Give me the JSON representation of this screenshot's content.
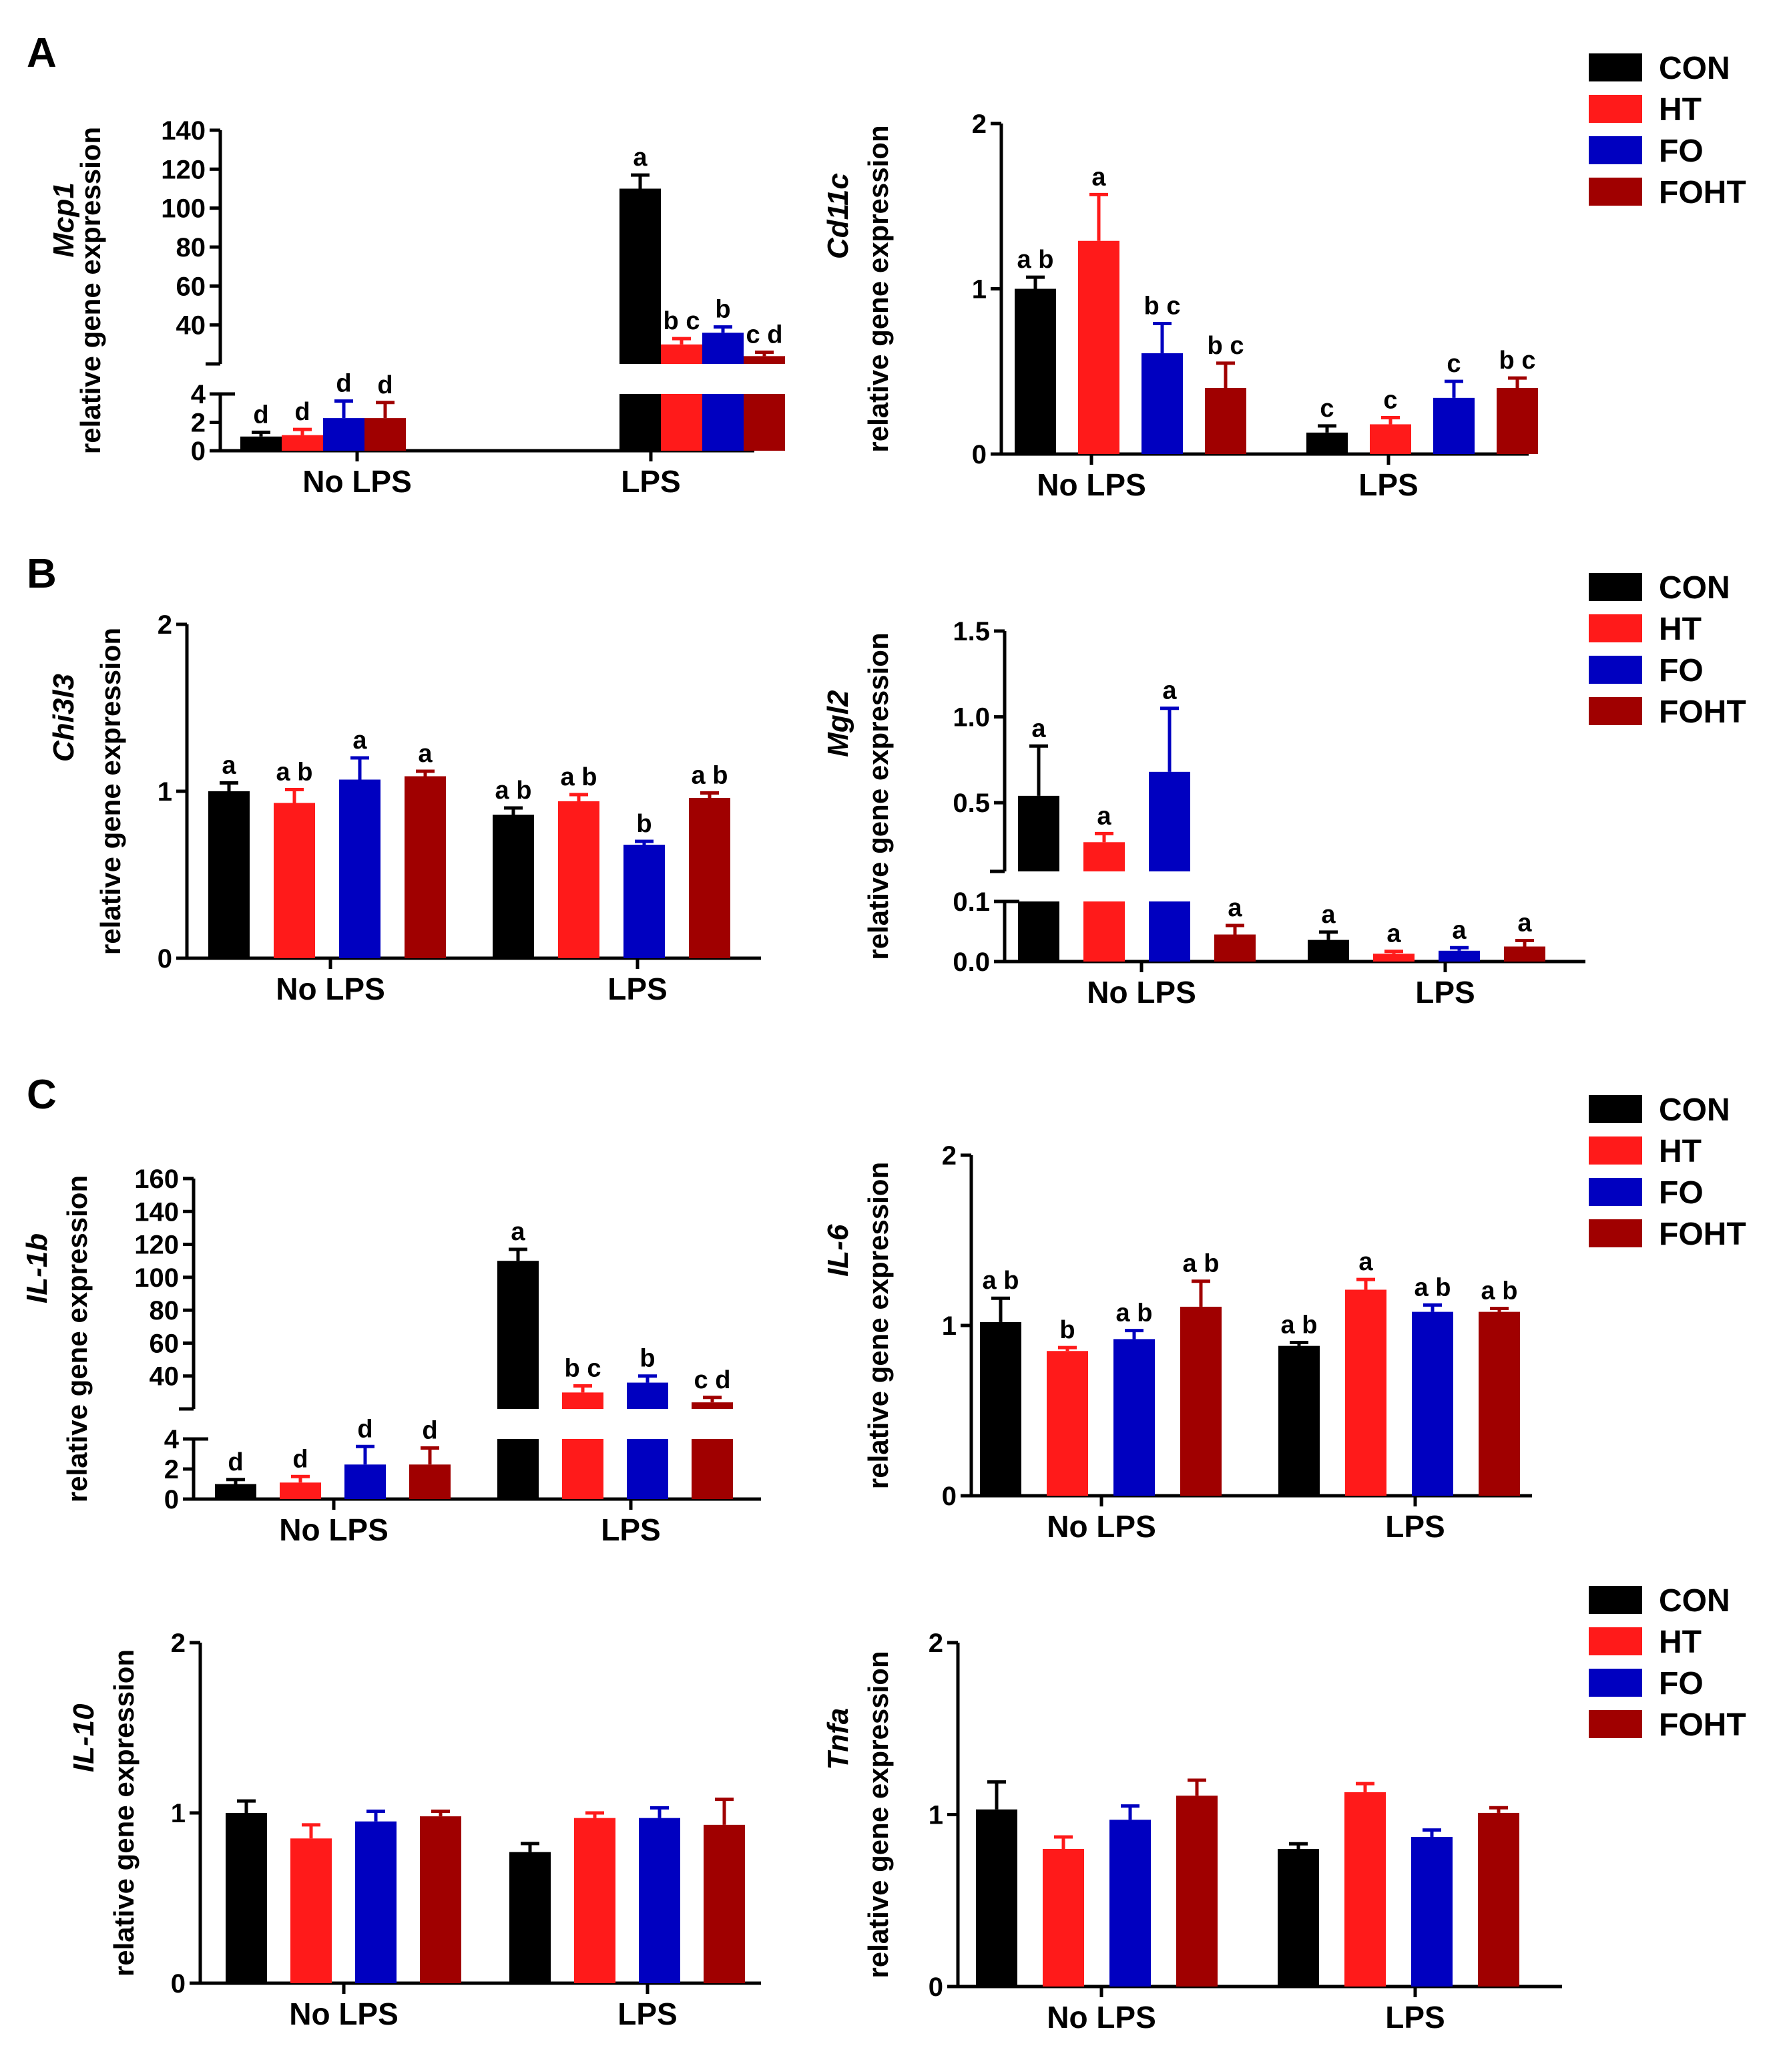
{
  "colors": {
    "CON": "#000000",
    "HT": "#ff1a1a",
    "FO": "#0000c0",
    "FOHT": "#a00000"
  },
  "panel_labels": [
    "A",
    "B",
    "C"
  ],
  "legend": {
    "entries": [
      "CON",
      "HT",
      "FO",
      "FOHT"
    ]
  },
  "chart_data": [
    {
      "id": "mcp1",
      "type": "bar",
      "gene": "Mcp1",
      "ylabel": "relative gene expression",
      "categories": [
        "No LPS",
        "LPS"
      ],
      "broken_axis": {
        "lower": [
          0,
          4
        ],
        "upper": [
          20,
          140
        ],
        "lower_ticks": [
          0,
          2,
          4
        ],
        "upper_ticks": [
          40,
          60,
          80,
          100,
          120,
          140
        ]
      },
      "series": [
        {
          "name": "CON",
          "values": [
            1.0,
            110
          ],
          "errors": [
            0.3,
            7
          ],
          "sig": [
            "d",
            "a"
          ]
        },
        {
          "name": "HT",
          "values": [
            1.1,
            30
          ],
          "errors": [
            0.4,
            3
          ],
          "sig": [
            "d",
            "b c"
          ]
        },
        {
          "name": "FO",
          "values": [
            2.3,
            36
          ],
          "errors": [
            1.2,
            3
          ],
          "sig": [
            "d",
            "b"
          ]
        },
        {
          "name": "FOHT",
          "values": [
            2.3,
            24
          ],
          "errors": [
            1.1,
            2
          ],
          "sig": [
            "d",
            "c d"
          ]
        }
      ]
    },
    {
      "id": "cd11c",
      "type": "bar",
      "gene": "Cd11c",
      "ylabel": "relative gene expression",
      "categories": [
        "No LPS",
        "LPS"
      ],
      "ylim": [
        0,
        2
      ],
      "yticks": [
        0,
        1,
        2
      ],
      "series": [
        {
          "name": "CON",
          "values": [
            1.0,
            0.13
          ],
          "errors": [
            0.07,
            0.04
          ],
          "sig": [
            "a b",
            "c"
          ]
        },
        {
          "name": "HT",
          "values": [
            1.29,
            0.18
          ],
          "errors": [
            0.28,
            0.04
          ],
          "sig": [
            "a",
            "c"
          ]
        },
        {
          "name": "FO",
          "values": [
            0.61,
            0.34
          ],
          "errors": [
            0.18,
            0.1
          ],
          "sig": [
            "b c",
            "c"
          ]
        },
        {
          "name": "FOHT",
          "values": [
            0.4,
            0.4
          ],
          "errors": [
            0.15,
            0.06
          ],
          "sig": [
            "b c",
            "b c"
          ]
        }
      ]
    },
    {
      "id": "chi3l3",
      "type": "bar",
      "gene": "Chi3l3",
      "ylabel": "relative gene expression",
      "categories": [
        "No LPS",
        "LPS"
      ],
      "ylim": [
        0,
        2
      ],
      "yticks": [
        0,
        1,
        2
      ],
      "series": [
        {
          "name": "CON",
          "values": [
            1.0,
            0.86
          ],
          "errors": [
            0.05,
            0.04
          ],
          "sig": [
            "a",
            "a b"
          ]
        },
        {
          "name": "HT",
          "values": [
            0.93,
            0.94
          ],
          "errors": [
            0.08,
            0.04
          ],
          "sig": [
            "a b",
            "a b"
          ]
        },
        {
          "name": "FO",
          "values": [
            1.07,
            0.68
          ],
          "errors": [
            0.13,
            0.02
          ],
          "sig": [
            "a",
            "b"
          ]
        },
        {
          "name": "FOHT",
          "values": [
            1.09,
            0.96
          ],
          "errors": [
            0.03,
            0.03
          ],
          "sig": [
            "a",
            "a b"
          ]
        }
      ]
    },
    {
      "id": "mgl2",
      "type": "bar",
      "gene": "Mgl2",
      "ylabel": "relative gene expression",
      "categories": [
        "No LPS",
        "LPS"
      ],
      "broken_axis": {
        "lower": [
          0,
          0.1
        ],
        "upper": [
          0.1,
          1.5
        ],
        "lower_ticks": [
          "0.0",
          "0.1"
        ],
        "upper_ticks": [
          "0.5",
          "1.0",
          "1.5"
        ]
      },
      "series": [
        {
          "name": "CON",
          "values": [
            0.54,
            0.036
          ],
          "errors": [
            0.29,
            0.013
          ],
          "sig": [
            "a",
            "a"
          ]
        },
        {
          "name": "HT",
          "values": [
            0.27,
            0.013
          ],
          "errors": [
            0.05,
            0.004
          ],
          "sig": [
            "a",
            "a"
          ]
        },
        {
          "name": "FO",
          "values": [
            0.68,
            0.018
          ],
          "errors": [
            0.37,
            0.005
          ],
          "sig": [
            "a",
            "a"
          ]
        },
        {
          "name": "FOHT",
          "values": [
            0.045,
            0.025
          ],
          "errors": [
            0.015,
            0.01
          ],
          "sig": [
            "a",
            "a"
          ]
        }
      ]
    },
    {
      "id": "il1b",
      "type": "bar",
      "gene": "IL-1b",
      "ylabel": "relative gene expression",
      "categories": [
        "No LPS",
        "LPS"
      ],
      "broken_axis": {
        "lower": [
          0,
          4
        ],
        "upper": [
          20,
          160
        ],
        "lower_ticks": [
          0,
          2,
          4
        ],
        "upper_ticks": [
          40,
          60,
          80,
          100,
          120,
          140,
          160
        ]
      },
      "series": [
        {
          "name": "CON",
          "values": [
            1.0,
            110
          ],
          "errors": [
            0.3,
            7
          ],
          "sig": [
            "d",
            "a"
          ]
        },
        {
          "name": "HT",
          "values": [
            1.1,
            30
          ],
          "errors": [
            0.4,
            4
          ],
          "sig": [
            "d",
            "b c"
          ]
        },
        {
          "name": "FO",
          "values": [
            2.3,
            36
          ],
          "errors": [
            1.2,
            4
          ],
          "sig": [
            "d",
            "b"
          ]
        },
        {
          "name": "FOHT",
          "values": [
            2.3,
            24
          ],
          "errors": [
            1.1,
            3
          ],
          "sig": [
            "d",
            "c d"
          ]
        }
      ]
    },
    {
      "id": "il6",
      "type": "bar",
      "gene": "IL-6",
      "ylabel": "relative gene expression",
      "categories": [
        "No LPS",
        "LPS"
      ],
      "ylim": [
        0,
        2
      ],
      "yticks": [
        0,
        1,
        2
      ],
      "series": [
        {
          "name": "CON",
          "values": [
            1.02,
            0.88
          ],
          "errors": [
            0.14,
            0.02
          ],
          "sig": [
            "a b",
            "a b"
          ]
        },
        {
          "name": "HT",
          "values": [
            0.85,
            1.21
          ],
          "errors": [
            0.02,
            0.06
          ],
          "sig": [
            "b",
            "a"
          ]
        },
        {
          "name": "FO",
          "values": [
            0.92,
            1.08
          ],
          "errors": [
            0.05,
            0.04
          ],
          "sig": [
            "a b",
            "a b"
          ]
        },
        {
          "name": "FOHT",
          "values": [
            1.11,
            1.08
          ],
          "errors": [
            0.15,
            0.02
          ],
          "sig": [
            "a b",
            "a b"
          ]
        }
      ]
    },
    {
      "id": "il10",
      "type": "bar",
      "gene": "IL-10",
      "ylabel": "relative gene expression",
      "categories": [
        "No LPS",
        "LPS"
      ],
      "ylim": [
        0,
        2
      ],
      "yticks": [
        0,
        1,
        2
      ],
      "series": [
        {
          "name": "CON",
          "values": [
            1.0,
            0.77
          ],
          "errors": [
            0.07,
            0.05
          ]
        },
        {
          "name": "HT",
          "values": [
            0.85,
            0.97
          ],
          "errors": [
            0.08,
            0.03
          ]
        },
        {
          "name": "FO",
          "values": [
            0.95,
            0.97
          ],
          "errors": [
            0.06,
            0.06
          ]
        },
        {
          "name": "FOHT",
          "values": [
            0.98,
            0.93
          ],
          "errors": [
            0.03,
            0.15
          ]
        }
      ]
    },
    {
      "id": "tnfa",
      "type": "bar",
      "gene": "Tnfa",
      "ylabel": "relative gene expression",
      "categories": [
        "No LPS",
        "LPS"
      ],
      "ylim": [
        0,
        2
      ],
      "yticks": [
        0,
        1,
        2
      ],
      "series": [
        {
          "name": "CON",
          "values": [
            1.03,
            0.8
          ],
          "errors": [
            0.16,
            0.03
          ]
        },
        {
          "name": "HT",
          "values": [
            0.8,
            1.13
          ],
          "errors": [
            0.07,
            0.05
          ]
        },
        {
          "name": "FO",
          "values": [
            0.97,
            0.87
          ],
          "errors": [
            0.08,
            0.04
          ]
        },
        {
          "name": "FOHT",
          "values": [
            1.11,
            1.01
          ],
          "errors": [
            0.09,
            0.03
          ]
        }
      ]
    }
  ]
}
